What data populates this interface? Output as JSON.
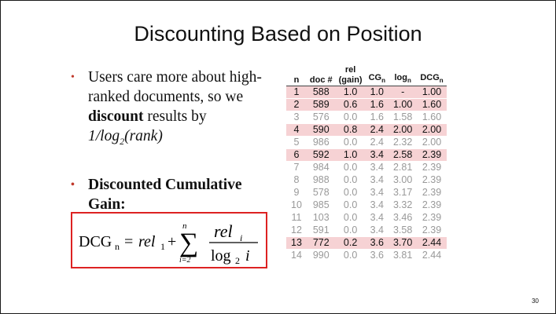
{
  "slide": {
    "title": "Discounting Based on Position",
    "page_number": "30"
  },
  "bullets": {
    "b1_part1": "Users care more about high-ranked documents, so we",
    "b1_bold": "discount",
    "b1_part2": " results by",
    "b1_formula_prefix": "1/log",
    "b1_formula_sub": "2",
    "b1_formula_suffix": "(rank)",
    "b2": "Discounted Cumulative Gain:"
  },
  "formula": {
    "lhs": "DCG",
    "lhs_sub": "n",
    "equals": "=",
    "rel1": "rel",
    "rel1_sub": "1",
    "plus": "+",
    "sigma": "∑",
    "sum_upper": "n",
    "sum_lower": "i=2",
    "numerator": "rel",
    "numerator_sub": "i",
    "denominator": "log",
    "denominator_sub": "2",
    "denominator_var": "i"
  },
  "table": {
    "headers": [
      {
        "line1": "",
        "line2": "n",
        "sub": ""
      },
      {
        "line1": "",
        "line2": "doc #",
        "sub": ""
      },
      {
        "line1": "rel",
        "line2": "(gain)",
        "sub": ""
      },
      {
        "line1": "",
        "line2": "CG",
        "sub": "n"
      },
      {
        "line1": "",
        "line2": "log",
        "sub": "n"
      },
      {
        "line1": "",
        "line2": "DCG",
        "sub": "n"
      }
    ],
    "rows": [
      {
        "cells": [
          "1",
          "588",
          "1.0",
          "1.0",
          "-",
          "1.00"
        ],
        "highlight": true
      },
      {
        "cells": [
          "2",
          "589",
          "0.6",
          "1.6",
          "1.00",
          "1.60"
        ],
        "highlight": true
      },
      {
        "cells": [
          "3",
          "576",
          "0.0",
          "1.6",
          "1.58",
          "1.60"
        ],
        "highlight": false
      },
      {
        "cells": [
          "4",
          "590",
          "0.8",
          "2.4",
          "2.00",
          "2.00"
        ],
        "highlight": true
      },
      {
        "cells": [
          "5",
          "986",
          "0.0",
          "2.4",
          "2.32",
          "2.00"
        ],
        "highlight": false
      },
      {
        "cells": [
          "6",
          "592",
          "1.0",
          "3.4",
          "2.58",
          "2.39"
        ],
        "highlight": true
      },
      {
        "cells": [
          "7",
          "984",
          "0.0",
          "3.4",
          "2.81",
          "2.39"
        ],
        "highlight": false
      },
      {
        "cells": [
          "8",
          "988",
          "0.0",
          "3.4",
          "3.00",
          "2.39"
        ],
        "highlight": false
      },
      {
        "cells": [
          "9",
          "578",
          "0.0",
          "3.4",
          "3.17",
          "2.39"
        ],
        "highlight": false
      },
      {
        "cells": [
          "10",
          "985",
          "0.0",
          "3.4",
          "3.32",
          "2.39"
        ],
        "highlight": false
      },
      {
        "cells": [
          "11",
          "103",
          "0.0",
          "3.4",
          "3.46",
          "2.39"
        ],
        "highlight": false
      },
      {
        "cells": [
          "12",
          "591",
          "0.0",
          "3.4",
          "3.58",
          "2.39"
        ],
        "highlight": false
      },
      {
        "cells": [
          "13",
          "772",
          "0.2",
          "3.6",
          "3.70",
          "2.44"
        ],
        "highlight": true
      },
      {
        "cells": [
          "14",
          "990",
          "0.0",
          "3.6",
          "3.81",
          "2.44"
        ],
        "highlight": false
      }
    ]
  },
  "colors": {
    "highlight_row": "#f6d2d4",
    "formula_border": "#dd2222",
    "bullet": "#c0392b"
  }
}
